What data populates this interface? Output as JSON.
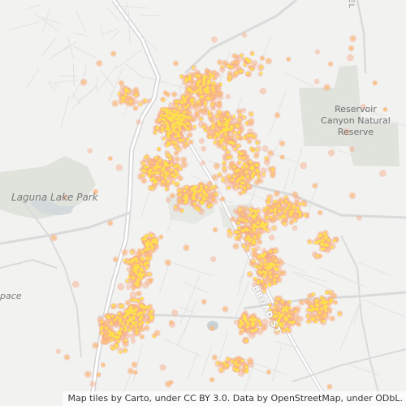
{
  "map": {
    "labels": {
      "reserve": [
        "Reservoir",
        "Canyon Natural",
        "Reserve"
      ],
      "lake": "Laguna Lake Park",
      "space": "pace",
      "street": "BROAD ST",
      "corner": "EL"
    },
    "attribution": "Map tiles by Carto, under CC BY 3.0. Data by OpenStreetMap, under ODbL.",
    "colors": {
      "background": "#f2f2f0",
      "park": "#dfe3dc",
      "road": "#d8d8d8",
      "road_casing": "#c8c8c8",
      "water": "#d4dadc",
      "heat_outer": "#f7a886",
      "heat_mid": "#fbc07a",
      "heat_core": "#fde24a"
    },
    "point_layer": "heatmap-style point density"
  }
}
